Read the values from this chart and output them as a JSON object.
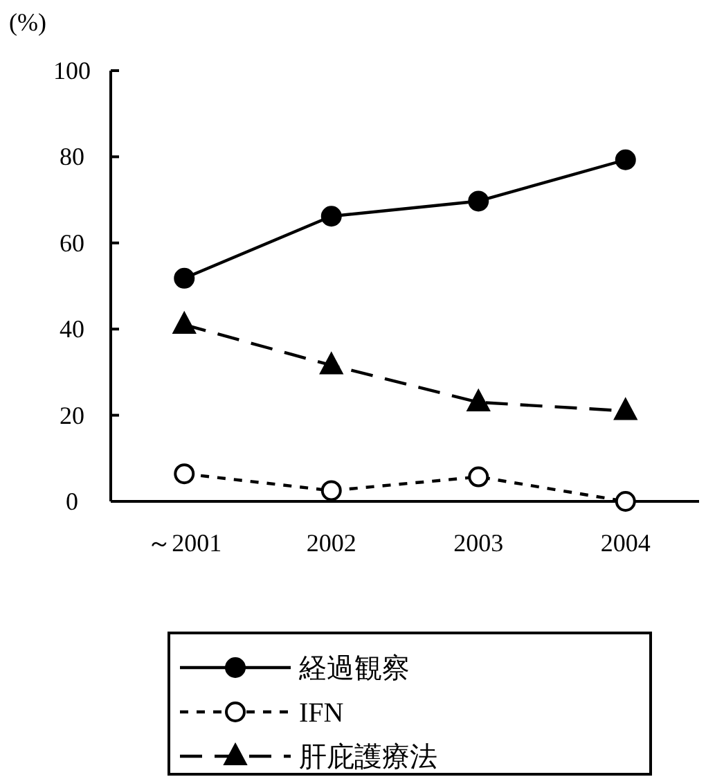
{
  "chart_data": {
    "type": "line",
    "ylabel": "(%)",
    "categories": [
      "～2001",
      "2002",
      "2003",
      "2004"
    ],
    "ylim": [
      0,
      100
    ],
    "yticks": [
      0,
      20,
      40,
      60,
      80,
      100
    ],
    "grid": false,
    "legend": "bottom",
    "series": [
      {
        "name": "経過観察",
        "color": "#000000",
        "marker": "circle",
        "line_style": "solid",
        "values": [
          51.8,
          66.2,
          69.7,
          79.3
        ]
      },
      {
        "name": "IFN",
        "color": "#000000",
        "colors": [
          "#ffffff",
          "#ffffff",
          "#ffffff",
          "#ffffff"
        ],
        "marker": "circle",
        "line_style": "dotted",
        "values": [
          6.4,
          2.5,
          5.7,
          0
        ]
      },
      {
        "name": "肝庇護療法",
        "color": "#000000",
        "marker": "triangle",
        "line_style": "dashed",
        "values": [
          41,
          31.6,
          23,
          21
        ]
      }
    ]
  }
}
